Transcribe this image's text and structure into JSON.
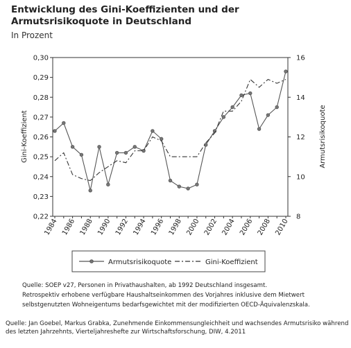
{
  "title": "Entwicklung des Gini-Koeffizienten und der Armutsrisikoquote in Deutschland",
  "subtitle": "In Prozent",
  "chart_data": {
    "type": "line",
    "x": [
      1984,
      1985,
      1986,
      1987,
      1988,
      1989,
      1990,
      1991,
      1992,
      1993,
      1994,
      1995,
      1996,
      1997,
      1998,
      1999,
      2000,
      2001,
      2002,
      2003,
      2004,
      2005,
      2006,
      2007,
      2008,
      2009,
      2010
    ],
    "x_tick_labels": [
      "1984",
      "1986",
      "1988",
      "1990",
      "1992",
      "1994",
      "1996",
      "1998",
      "2000",
      "2002",
      "2004",
      "2006",
      "2008",
      "2010"
    ],
    "y_left": {
      "label": "Gini-Koeffizient",
      "min": 0.22,
      "max": 0.3,
      "ticks": [
        "0,22",
        "0,23",
        "0,24",
        "0,25",
        "0,26",
        "0,27",
        "0,28",
        "0,29",
        "0,30"
      ]
    },
    "y_right": {
      "label": "Armutsrisikoquote",
      "min": 8,
      "max": 16,
      "ticks": [
        "8",
        "10",
        "12",
        "14",
        "16"
      ]
    },
    "series": [
      {
        "name": "Armutsrisikoquote",
        "axis": "right",
        "style": "solid-with-markers",
        "values": [
          12.3,
          12.7,
          11.5,
          11.1,
          9.3,
          11.5,
          9.6,
          11.2,
          11.2,
          11.5,
          11.3,
          12.3,
          11.9,
          9.8,
          9.5,
          9.4,
          9.6,
          11.6,
          12.3,
          13.0,
          13.5,
          14.1,
          14.2,
          12.4,
          13.1,
          13.5,
          15.3
        ]
      },
      {
        "name": "Gini-Koeffizient",
        "axis": "left",
        "style": "dashed",
        "values": [
          0.248,
          0.252,
          0.241,
          0.239,
          0.238,
          0.242,
          0.245,
          0.248,
          0.247,
          0.253,
          0.253,
          0.26,
          0.258,
          0.25,
          0.25,
          0.25,
          0.25,
          0.257,
          0.262,
          0.273,
          0.273,
          0.278,
          0.289,
          0.285,
          0.289,
          0.287,
          0.289
        ]
      }
    ],
    "legend_position": "bottom-center",
    "grid": false
  },
  "notes": [
    "Quelle: SOEP v27, Personen in Privathaushalten, ab 1992 Deutschland insgesamt.",
    "Retrospektiv erhobene verfügbare Haushaltseinkommen des Vorjahres inklusive dem Mietwert selbstgenutzten Wohneigentums bedarfsgewichtet mit der modifizierten OECD-Äquivalenzskala."
  ],
  "source": "Quelle: Jan Goebel, Markus Grabka, Zunehmende Einkommensungleichheit und wachsendes Armutsrisiko während des letzten Jahrzehnts, Vierteljahreshefte zur Wirtschaftsforschung, DIW, 4.2011"
}
